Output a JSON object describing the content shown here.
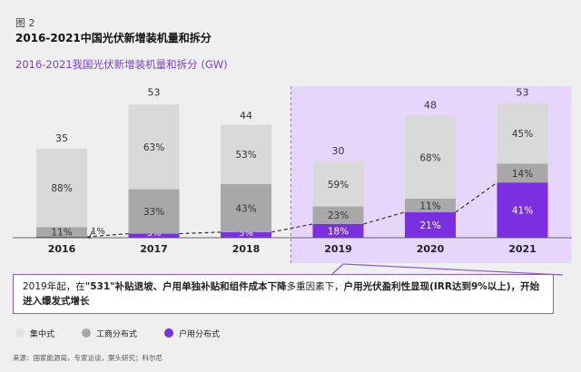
{
  "figure_label": "图 2",
  "title": "2016-2021中国光伏新增装机量和拆分",
  "chart_data": {
    "type": "bar",
    "stacked": true,
    "title": "2016-2021我国光伏新增装机量和拆分 (GW)",
    "categories": [
      "2016",
      "2017",
      "2018",
      "2019",
      "2020",
      "2021"
    ],
    "totals": [
      35,
      53,
      44,
      30,
      48,
      53
    ],
    "series": [
      {
        "name": "户用分布式",
        "values_pct": [
          1,
          3,
          5,
          18,
          21,
          41
        ],
        "color": "#7a2fe0"
      },
      {
        "name": "工商分布式",
        "values_pct": [
          11,
          33,
          43,
          23,
          11,
          14
        ],
        "color": "#a8a8a8"
      },
      {
        "name": "集中式",
        "values_pct": [
          88,
          63,
          53,
          59,
          68,
          45
        ],
        "color": "#d9d9d9"
      }
    ],
    "highlight_categories": [
      "2019",
      "2020",
      "2021"
    ],
    "highlight_color": "#e6d6fb",
    "trend_line": "dashed, 户用分布式"
  },
  "callout": {
    "p1": "2019年起，在",
    "b1": "\"531\"补贴退坡、户用单独补贴和组件成本下降",
    "p2": "多重因素下，",
    "b2": "户用光伏盈利性显现(IRR达到9%以上)，开始进入爆发式增长"
  },
  "legend": [
    "集中式",
    "工商分布式",
    "户用分布式"
  ],
  "source": "来源：国家能源局，专家访谈，案头研究；科尔尼"
}
